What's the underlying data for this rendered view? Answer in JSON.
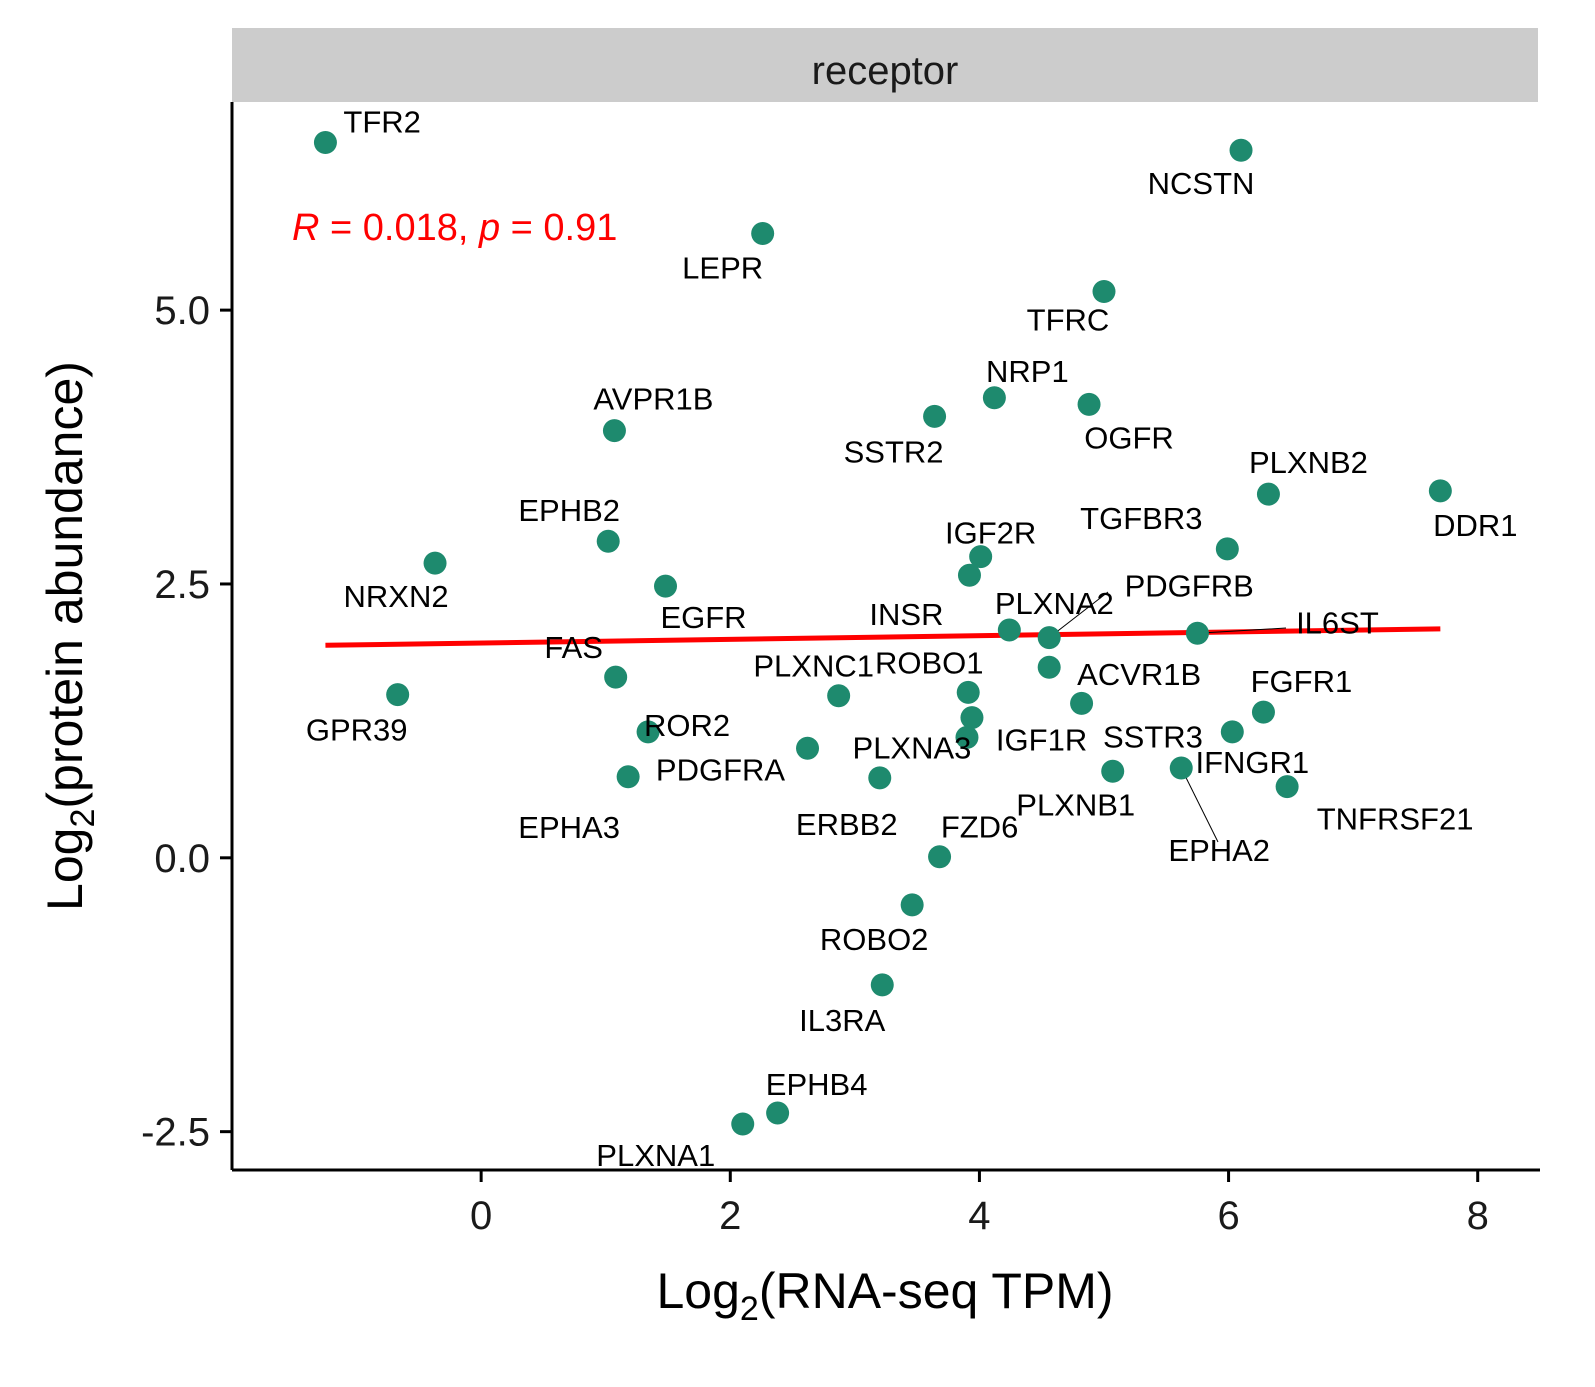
{
  "chart_data": {
    "type": "scatter",
    "facet_label": "receptor",
    "xlabel": {
      "main": "Log",
      "sub": "2",
      "rest": "(RNA-seq TPM)"
    },
    "ylabel": {
      "main": "Log",
      "sub": "2",
      "rest": "(protein abundance)"
    },
    "xlim": [
      -2.0,
      8.5
    ],
    "ylim": [
      -2.85,
      6.9
    ],
    "x_ticks": [
      {
        "value": 0,
        "label": "0"
      },
      {
        "value": 2,
        "label": "2"
      },
      {
        "value": 4,
        "label": "4"
      },
      {
        "value": 6,
        "label": "6"
      },
      {
        "value": 8,
        "label": "8"
      }
    ],
    "y_ticks": [
      {
        "value": -2.5,
        "label": "-2.5"
      },
      {
        "value": 0,
        "label": "0.0"
      },
      {
        "value": 2.5,
        "label": "2.5"
      },
      {
        "value": 5,
        "label": "5.0"
      }
    ],
    "stat_annotation": {
      "r_symbol": "R",
      "r_text": " = 0.018, ",
      "p_symbol": "p",
      "p_text": " = 0.91",
      "color": "#ff0000"
    },
    "point_color": "#1e8a6e",
    "fit_color": "#ff0000",
    "fit_line": {
      "x": [
        -1.25,
        7.7
      ],
      "y": [
        1.94,
        2.09
      ]
    },
    "points": [
      {
        "label": "TFR2",
        "x": -1.25,
        "y": 6.53
      },
      {
        "label": "NCSTN",
        "x": 6.1,
        "y": 6.46
      },
      {
        "label": "LEPR",
        "x": 2.26,
        "y": 5.7
      },
      {
        "label": "TFRC",
        "x": 5.0,
        "y": 5.17
      },
      {
        "label": "NRP1",
        "x": 4.12,
        "y": 4.2
      },
      {
        "label": "OGFR",
        "x": 4.88,
        "y": 4.14
      },
      {
        "label": "SSTR2",
        "x": 3.64,
        "y": 4.03
      },
      {
        "label": "AVPR1B",
        "x": 1.07,
        "y": 3.9
      },
      {
        "label": "PLXNB2",
        "x": 6.32,
        "y": 3.32
      },
      {
        "label": "DDR1",
        "x": 7.7,
        "y": 3.35
      },
      {
        "label": "EPHB2",
        "x": 1.02,
        "y": 2.89
      },
      {
        "label": "TGFBR3",
        "x": 5.99,
        "y": 2.82
      },
      {
        "label": "IGF2R",
        "x": 4.01,
        "y": 2.75
      },
      {
        "label": "NRXN2",
        "x": -0.37,
        "y": 2.69
      },
      {
        "label": "INSR",
        "x": 3.92,
        "y": 2.58
      },
      {
        "label": "EGFR",
        "x": 1.48,
        "y": 2.48
      },
      {
        "label": "PLXNA2",
        "x": 4.24,
        "y": 2.08
      },
      {
        "label": "PDGFRB",
        "x": 4.56,
        "y": 2.01
      },
      {
        "label": "IL6ST",
        "x": 5.75,
        "y": 2.05
      },
      {
        "label": "ACVR1B",
        "x": 4.56,
        "y": 1.74
      },
      {
        "label": "FAS",
        "x": 1.08,
        "y": 1.65
      },
      {
        "label": "ROBO1",
        "x": 3.91,
        "y": 1.51
      },
      {
        "label": "GPR39",
        "x": -0.67,
        "y": 1.49
      },
      {
        "label": "PLXNC1",
        "x": 2.87,
        "y": 1.48
      },
      {
        "label": "IGF1R",
        "x": 4.82,
        "y": 1.41
      },
      {
        "label": "FGFR1",
        "x": 6.28,
        "y": 1.33
      },
      {
        "label": "SSTR3",
        "x": 3.94,
        "y": 1.28
      },
      {
        "label": "ROR2",
        "x": 1.34,
        "y": 1.15
      },
      {
        "label": "IFNGR1",
        "x": 6.03,
        "y": 1.15
      },
      {
        "label": "PLXNA3",
        "x": 3.9,
        "y": 1.1
      },
      {
        "label": "PDGFRA",
        "x": 2.62,
        "y": 1.0
      },
      {
        "label": "EPHA2",
        "x": 5.62,
        "y": 0.82
      },
      {
        "label": "PLXNB1",
        "x": 5.07,
        "y": 0.79
      },
      {
        "label": "EPHA3",
        "x": 1.18,
        "y": 0.74
      },
      {
        "label": "ERBB2",
        "x": 3.2,
        "y": 0.73
      },
      {
        "label": "TNFRSF21",
        "x": 6.47,
        "y": 0.65
      },
      {
        "label": "FZD6",
        "x": 3.68,
        "y": 0.01
      },
      {
        "label": "ROBO2",
        "x": 3.46,
        "y": -0.43
      },
      {
        "label": "IL3RA",
        "x": 3.22,
        "y": -1.16
      },
      {
        "label": "EPHB4",
        "x": 2.38,
        "y": -2.33
      },
      {
        "label": "PLXNA1",
        "x": 2.1,
        "y": -2.43
      }
    ]
  }
}
